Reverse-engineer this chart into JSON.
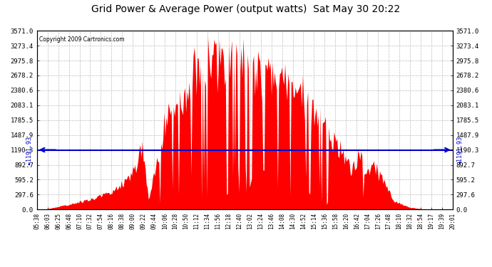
{
  "title": "Grid Power & Average Power (output watts)  Sat May 30 20:22",
  "copyright": "Copyright 2009 Cartronics.com",
  "avg_power": 1191.93,
  "y_max": 3571.0,
  "y_min": 0.0,
  "yticks": [
    0.0,
    297.6,
    595.2,
    892.7,
    1190.3,
    1487.9,
    1785.5,
    2083.1,
    2380.6,
    2678.2,
    2975.8,
    3273.4,
    3571.0
  ],
  "background_color": "#ffffff",
  "plot_bg_color": "#ffffff",
  "grid_color": "#bbbbbb",
  "bar_color": "#ff0000",
  "avg_line_color": "#0000cc",
  "title_fontsize": 10,
  "xtick_labels": [
    "05:38",
    "06:03",
    "06:25",
    "06:48",
    "07:10",
    "07:32",
    "07:54",
    "08:16",
    "08:38",
    "09:00",
    "09:22",
    "09:44",
    "10:06",
    "10:28",
    "10:50",
    "11:12",
    "11:34",
    "11:56",
    "12:18",
    "12:40",
    "13:02",
    "13:24",
    "13:46",
    "14:08",
    "14:30",
    "14:52",
    "15:14",
    "15:36",
    "15:58",
    "16:20",
    "16:42",
    "17:04",
    "17:26",
    "17:48",
    "18:10",
    "18:32",
    "18:54",
    "19:17",
    "19:39",
    "20:01"
  ],
  "n_points": 400,
  "seed": 42
}
